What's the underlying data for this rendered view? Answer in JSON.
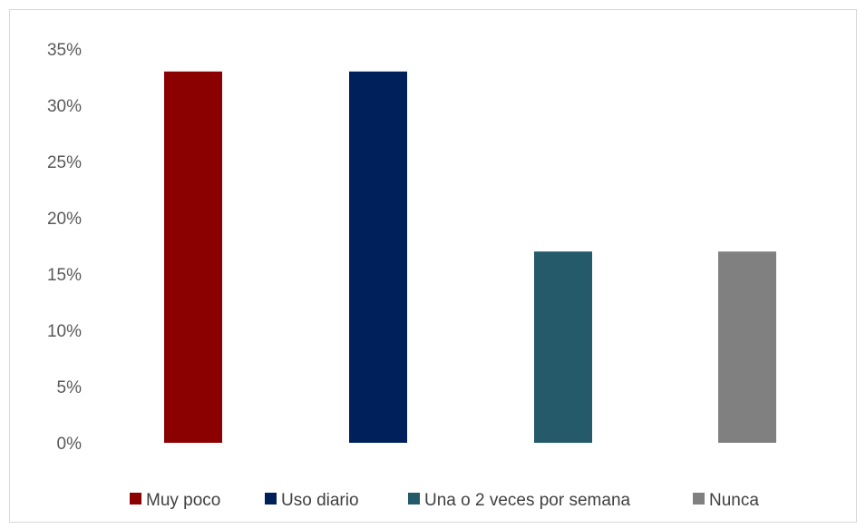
{
  "chart_data": {
    "type": "bar",
    "categories": [
      "Muy poco",
      "Uso diario",
      "Una o 2 veces por semana",
      "Nunca"
    ],
    "values": [
      0.33,
      0.33,
      0.17,
      0.17
    ],
    "colors": [
      "#8b0000",
      "#00205b",
      "#245a69",
      "#808080"
    ],
    "y_ticks": [
      "0%",
      "5%",
      "10%",
      "15%",
      "20%",
      "25%",
      "30%",
      "35%"
    ],
    "ylim": [
      0,
      0.35
    ],
    "title": "",
    "xlabel": "",
    "ylabel": "",
    "grid": false,
    "legend": "bottom"
  }
}
